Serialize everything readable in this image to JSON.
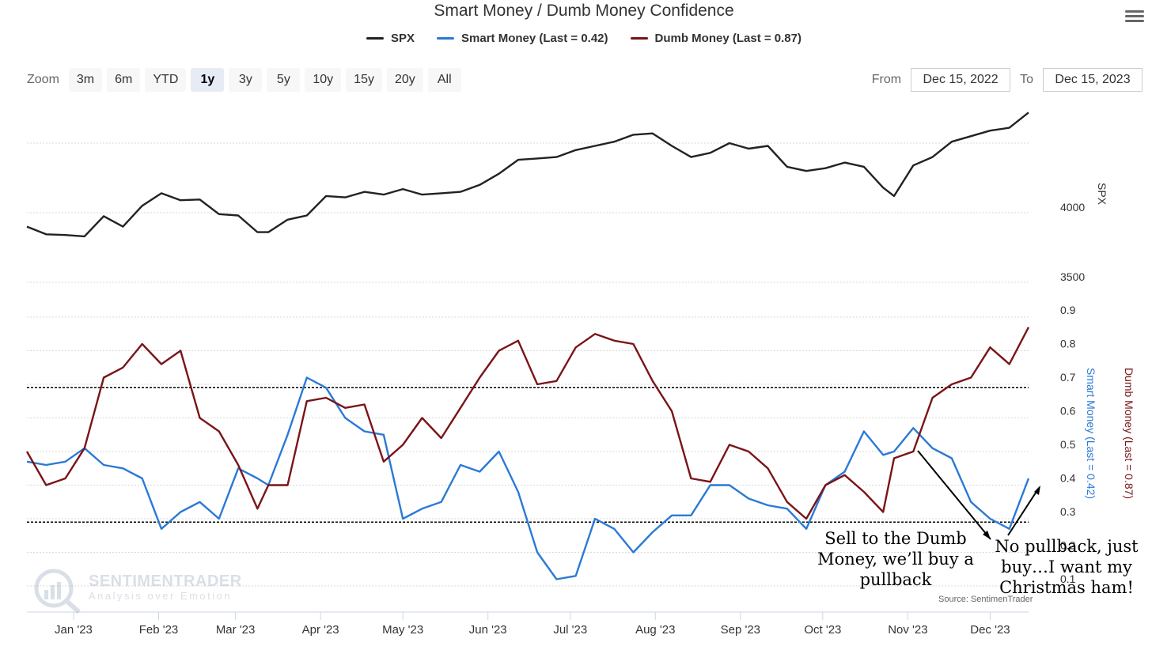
{
  "chart_data": {
    "type": "line",
    "title": "Smart Money / Dumb Money Confidence",
    "legend": [
      "SPX",
      "Smart Money (Last = 0.42)",
      "Dumb Money (Last = 0.87)"
    ],
    "colors": {
      "SPX": "#222222",
      "Smart Money": "#2a7ad5",
      "Dumb Money": "#7a1418"
    },
    "x_tick_labels": [
      "Jan '23",
      "Feb '23",
      "Mar '23",
      "Apr '23",
      "May '23",
      "Jun '23",
      "Jul '23",
      "Aug '23",
      "Sep '23",
      "Oct '23",
      "Nov '23",
      "Dec '23"
    ],
    "x_range": [
      "2022-12-15",
      "2023-12-15"
    ],
    "upper_axis": {
      "label": "SPX",
      "ticks": [
        4000,
        3500
      ],
      "ylim": [
        3400,
        4800
      ]
    },
    "lower_axis": {
      "left_label": "Smart Money (Last = 0.42)",
      "right_label": "Dumb Money (Last = 0.87)",
      "ticks": [
        0.9,
        0.8,
        0.7,
        0.6,
        0.5,
        0.4,
        0.3,
        0.2,
        0.1
      ],
      "ylim": [
        0.05,
        0.95
      ],
      "reference_lines": [
        0.69,
        0.29
      ]
    },
    "series": [
      {
        "name": "SPX",
        "x": [
          "2022-12-15",
          "2022-12-22",
          "2022-12-29",
          "2023-01-05",
          "2023-01-12",
          "2023-01-19",
          "2023-01-26",
          "2023-02-02",
          "2023-02-09",
          "2023-02-16",
          "2023-02-23",
          "2023-03-02",
          "2023-03-09",
          "2023-03-13",
          "2023-03-20",
          "2023-03-27",
          "2023-04-03",
          "2023-04-10",
          "2023-04-17",
          "2023-04-24",
          "2023-05-01",
          "2023-05-08",
          "2023-05-15",
          "2023-05-22",
          "2023-05-29",
          "2023-06-05",
          "2023-06-12",
          "2023-06-19",
          "2023-06-26",
          "2023-07-03",
          "2023-07-10",
          "2023-07-17",
          "2023-07-24",
          "2023-07-31",
          "2023-08-07",
          "2023-08-14",
          "2023-08-21",
          "2023-08-28",
          "2023-09-04",
          "2023-09-11",
          "2023-09-18",
          "2023-09-25",
          "2023-10-02",
          "2023-10-09",
          "2023-10-16",
          "2023-10-23",
          "2023-10-27",
          "2023-11-03",
          "2023-11-10",
          "2023-11-17",
          "2023-11-24",
          "2023-12-01",
          "2023-12-08",
          "2023-12-15"
        ],
        "values": [
          3900,
          3845,
          3840,
          3830,
          3975,
          3900,
          4050,
          4140,
          4090,
          4095,
          3990,
          3980,
          3860,
          3860,
          3950,
          3980,
          4120,
          4110,
          4150,
          4130,
          4170,
          4130,
          4140,
          4150,
          4200,
          4280,
          4380,
          4390,
          4400,
          4450,
          4480,
          4510,
          4560,
          4570,
          4480,
          4400,
          4430,
          4500,
          4460,
          4480,
          4330,
          4300,
          4320,
          4360,
          4330,
          4180,
          4120,
          4340,
          4400,
          4510,
          4550,
          4590,
          4610,
          4720
        ]
      },
      {
        "name": "Smart Money (Last = 0.42)",
        "x": [
          "2022-12-15",
          "2022-12-22",
          "2022-12-29",
          "2023-01-05",
          "2023-01-12",
          "2023-01-19",
          "2023-01-26",
          "2023-02-02",
          "2023-02-09",
          "2023-02-16",
          "2023-02-23",
          "2023-03-02",
          "2023-03-09",
          "2023-03-13",
          "2023-03-20",
          "2023-03-27",
          "2023-04-03",
          "2023-04-10",
          "2023-04-17",
          "2023-04-24",
          "2023-05-01",
          "2023-05-08",
          "2023-05-15",
          "2023-05-22",
          "2023-05-29",
          "2023-06-05",
          "2023-06-12",
          "2023-06-19",
          "2023-06-26",
          "2023-07-03",
          "2023-07-10",
          "2023-07-17",
          "2023-07-24",
          "2023-07-31",
          "2023-08-07",
          "2023-08-14",
          "2023-08-21",
          "2023-08-28",
          "2023-09-04",
          "2023-09-11",
          "2023-09-18",
          "2023-09-25",
          "2023-10-02",
          "2023-10-09",
          "2023-10-16",
          "2023-10-23",
          "2023-10-27",
          "2023-11-03",
          "2023-11-10",
          "2023-11-17",
          "2023-11-24",
          "2023-12-01",
          "2023-12-08",
          "2023-12-15"
        ],
        "values": [
          0.47,
          0.46,
          0.47,
          0.51,
          0.46,
          0.45,
          0.42,
          0.27,
          0.32,
          0.35,
          0.3,
          0.45,
          0.42,
          0.4,
          0.55,
          0.72,
          0.69,
          0.6,
          0.56,
          0.55,
          0.3,
          0.33,
          0.35,
          0.46,
          0.44,
          0.5,
          0.38,
          0.2,
          0.12,
          0.13,
          0.3,
          0.27,
          0.2,
          0.26,
          0.31,
          0.31,
          0.4,
          0.4,
          0.36,
          0.34,
          0.33,
          0.27,
          0.4,
          0.44,
          0.56,
          0.49,
          0.5,
          0.57,
          0.51,
          0.48,
          0.35,
          0.3,
          0.27,
          0.42
        ]
      },
      {
        "name": "Dumb Money (Last = 0.87)",
        "x": [
          "2022-12-15",
          "2022-12-22",
          "2022-12-29",
          "2023-01-05",
          "2023-01-12",
          "2023-01-19",
          "2023-01-26",
          "2023-02-02",
          "2023-02-09",
          "2023-02-16",
          "2023-02-23",
          "2023-03-02",
          "2023-03-09",
          "2023-03-13",
          "2023-03-20",
          "2023-03-27",
          "2023-04-03",
          "2023-04-10",
          "2023-04-17",
          "2023-04-24",
          "2023-05-01",
          "2023-05-08",
          "2023-05-15",
          "2023-05-22",
          "2023-05-29",
          "2023-06-05",
          "2023-06-12",
          "2023-06-19",
          "2023-06-26",
          "2023-07-03",
          "2023-07-10",
          "2023-07-17",
          "2023-07-24",
          "2023-07-31",
          "2023-08-07",
          "2023-08-14",
          "2023-08-21",
          "2023-08-28",
          "2023-09-04",
          "2023-09-11",
          "2023-09-18",
          "2023-09-25",
          "2023-10-02",
          "2023-10-09",
          "2023-10-16",
          "2023-10-23",
          "2023-10-27",
          "2023-11-03",
          "2023-11-10",
          "2023-11-17",
          "2023-11-24",
          "2023-12-01",
          "2023-12-08",
          "2023-12-15"
        ],
        "values": [
          0.5,
          0.4,
          0.42,
          0.51,
          0.72,
          0.75,
          0.82,
          0.76,
          0.8,
          0.6,
          0.56,
          0.46,
          0.33,
          0.4,
          0.4,
          0.65,
          0.66,
          0.63,
          0.64,
          0.47,
          0.52,
          0.6,
          0.54,
          0.63,
          0.72,
          0.8,
          0.83,
          0.7,
          0.71,
          0.81,
          0.85,
          0.83,
          0.82,
          0.71,
          0.62,
          0.42,
          0.41,
          0.52,
          0.5,
          0.45,
          0.35,
          0.3,
          0.4,
          0.43,
          0.38,
          0.32,
          0.48,
          0.5,
          0.66,
          0.7,
          0.72,
          0.81,
          0.76,
          0.87
        ]
      }
    ],
    "annotations": [
      "Sell to the Dumb Money, we’ll buy a pullback",
      "No pullback, just buy…I want my Christmas ham!"
    ],
    "source": "Source: SentimenTrader"
  },
  "ui": {
    "zoom_label": "Zoom",
    "zoom_buttons": [
      "3m",
      "6m",
      "YTD",
      "1y",
      "3y",
      "5y",
      "10y",
      "15y",
      "20y",
      "All"
    ],
    "zoom_active": "1y",
    "from_label": "From",
    "from_value": "Dec 15, 2022",
    "to_label": "To",
    "to_value": "Dec 15, 2023",
    "menu_icon": "hamburger-menu-icon"
  },
  "watermark": {
    "brand": "SENTIMENTRADER",
    "tagline": "Analysis over Emotion"
  }
}
